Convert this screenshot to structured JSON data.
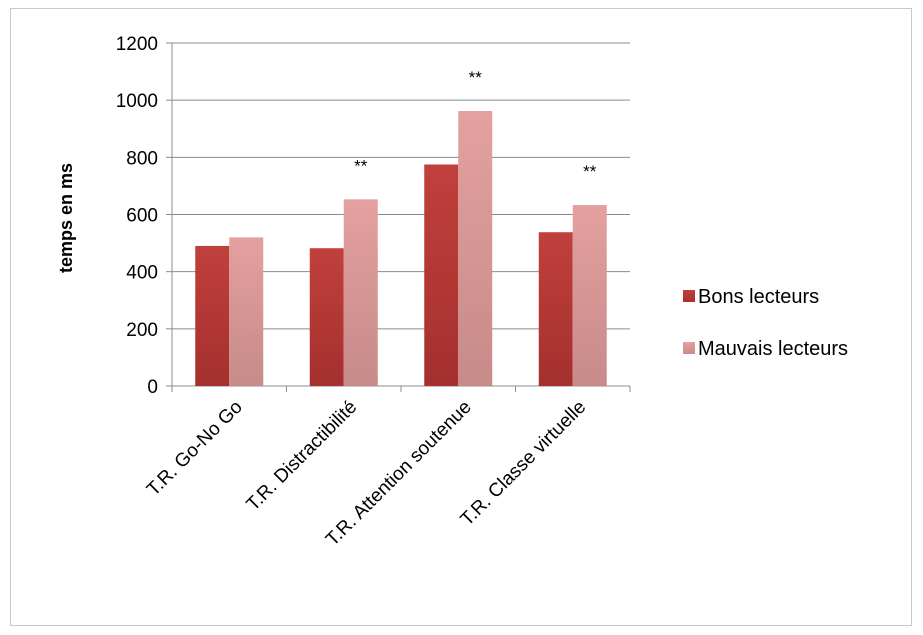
{
  "chart_data": {
    "type": "bar",
    "title": "",
    "xlabel": "",
    "ylabel": "temps en ms",
    "ylim": [
      0,
      1200
    ],
    "yticks": [
      0,
      200,
      400,
      600,
      800,
      1000,
      1200
    ],
    "grid": true,
    "legend_position": "right",
    "categories": [
      "T.R. Go-No Go",
      "T.R. Distractibilité",
      "T.R. Attention soutenue",
      "T.R. Classe virtuelle"
    ],
    "series": [
      {
        "name": "Bons lecteurs",
        "values": [
          490,
          482,
          775,
          538
        ],
        "color": "#b83a37"
      },
      {
        "name": "Mauvais lecteurs",
        "values": [
          520,
          653,
          962,
          633
        ],
        "color": "#d99594"
      }
    ],
    "annotations": [
      "",
      "**",
      "**",
      "**"
    ]
  }
}
